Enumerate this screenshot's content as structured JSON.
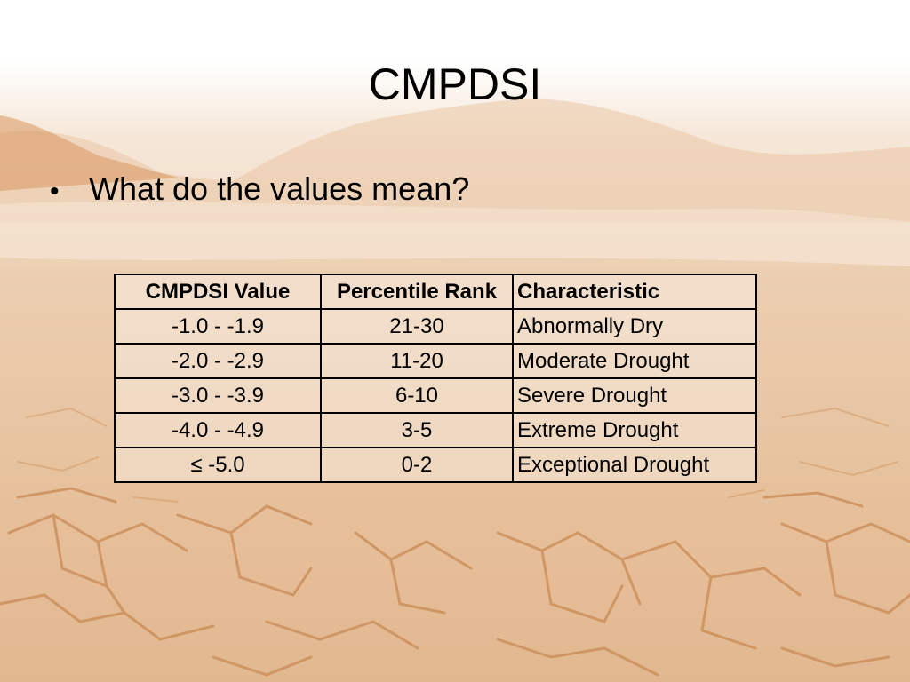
{
  "slide": {
    "title": "CMPDSI",
    "bullets": [
      "What do the values mean?"
    ]
  },
  "table": {
    "headers": [
      "CMPDSI Value",
      "Percentile Rank",
      "Characteristic"
    ],
    "rows": [
      [
        "-1.0 - -1.9",
        "21-30",
        "Abnormally Dry"
      ],
      [
        "-2.0 - -2.9",
        "11-20",
        "Moderate Drought"
      ],
      [
        "-3.0 - -3.9",
        "6-10",
        "Severe Drought"
      ],
      [
        "-4.0 - -4.9",
        "3-5",
        "Extreme Drought"
      ],
      [
        "≤ -5.0",
        "0-2",
        "Exceptional Drought"
      ]
    ]
  },
  "colors": {
    "background_tint": "#e6bf99",
    "crack_color": "#c98a55",
    "text": "#000000"
  }
}
